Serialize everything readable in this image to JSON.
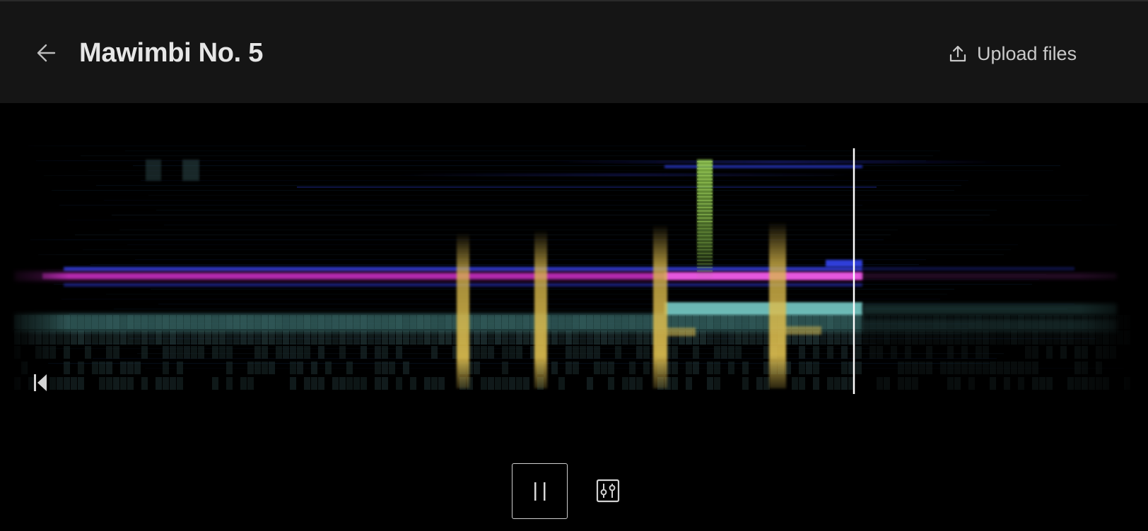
{
  "header": {
    "back_icon": "arrow-left-icon",
    "title": "Mawimbi No. 5",
    "upload_icon": "upload-icon",
    "upload_label": "Upload files"
  },
  "player": {
    "skip_back_icon": "skip-to-start-icon",
    "pause_icon": "pause-icon",
    "mixer_icon": "sliders-icon",
    "progress": 0.75
  },
  "colors": {
    "background": "#000000",
    "header_bg": "#151515",
    "title": "#e6e6e6",
    "track_cyan": "#7fd9d4",
    "track_magenta": "#e040d8",
    "track_blue": "#3848ff",
    "track_yellow": "#d9b84a",
    "track_green": "#7fbf4a",
    "track_slate": "#2e4446",
    "playhead": "#ffffff"
  }
}
